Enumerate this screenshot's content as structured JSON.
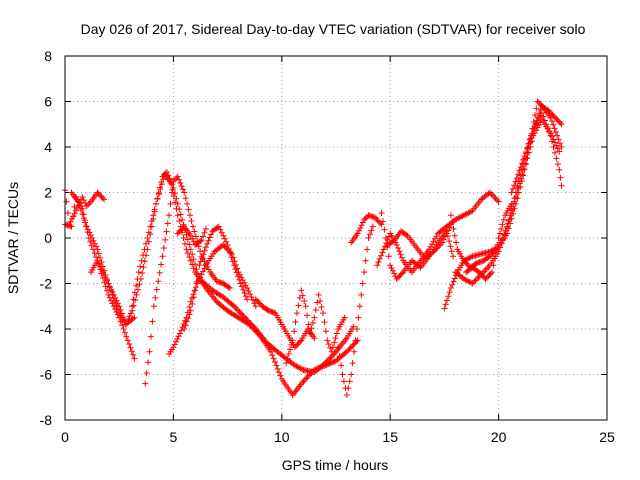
{
  "chart_data": {
    "type": "scatter",
    "title": "Day 026 of 2017, Sidereal Day-to-day VTEC variation (SDTVAR) for receiver solo",
    "xlabel": "GPS time / hours",
    "ylabel": "SDTVAR / TECUs",
    "xlim": [
      0,
      25
    ],
    "ylim": [
      -8,
      8
    ],
    "x_ticks": [
      0,
      5,
      10,
      15,
      20,
      25
    ],
    "y_ticks": [
      -8,
      -6,
      -4,
      -2,
      0,
      2,
      4,
      6,
      8
    ],
    "grid": true,
    "marker": "+",
    "series_color": "#ff0000",
    "series": [
      {
        "x": [
          0.0,
          0.2,
          0.5,
          0.8,
          1.0,
          1.2,
          1.5,
          1.8
        ],
        "y": [
          2.1,
          0.6,
          1.2,
          1.8,
          1.4,
          1.6,
          2.0,
          1.7
        ]
      },
      {
        "x": [
          0.0,
          0.3,
          0.5,
          0.8,
          1.1,
          1.5,
          2.0,
          2.5,
          2.9,
          3.2
        ],
        "y": [
          0.6,
          0.5,
          1.8,
          1.3,
          0.0,
          -1.0,
          -2.5,
          -3.5,
          -4.5,
          -5.3
        ]
      },
      {
        "x": [
          0.3,
          0.6,
          1.0,
          1.5,
          2.0,
          2.5,
          2.8,
          3.2
        ],
        "y": [
          2.0,
          1.6,
          0.5,
          -0.5,
          -2.0,
          -3.3,
          -3.8,
          -3.5
        ]
      },
      {
        "x": [
          1.2,
          1.5,
          2.0,
          2.5,
          2.8,
          3.1,
          3.5,
          3.8,
          4.2,
          4.6,
          4.9,
          5.2,
          5.6,
          6.0,
          6.5,
          7.0,
          7.5,
          8.0,
          8.5,
          9.0,
          9.5,
          10.0,
          10.5,
          11.0,
          11.5,
          12.0,
          12.5,
          13.0,
          13.5
        ],
        "y": [
          -1.5,
          -1.0,
          -2.0,
          -3.0,
          -3.8,
          -3.2,
          -1.8,
          -0.5,
          1.5,
          2.8,
          2.4,
          1.0,
          -0.5,
          -1.5,
          -2.2,
          -2.8,
          -3.2,
          -3.5,
          -3.8,
          -4.3,
          -5.0,
          -6.2,
          -6.9,
          -6.3,
          -5.8,
          -5.6,
          -5.4,
          -5.0,
          -4.5
        ]
      },
      {
        "x": [
          3.1,
          3.4,
          3.8,
          4.2,
          4.5,
          4.7,
          5.0,
          5.4,
          5.8,
          6.2,
          6.8,
          7.3,
          7.8,
          8.3,
          8.8,
          9.3,
          9.8,
          10.2,
          10.6,
          11.0,
          11.5,
          12.0,
          12.5,
          13.0,
          13.3
        ],
        "y": [
          -3.0,
          -1.5,
          0.0,
          1.5,
          2.7,
          2.9,
          2.2,
          0.8,
          -0.5,
          -1.8,
          -2.3,
          -2.6,
          -3.0,
          -3.5,
          -4.0,
          -4.6,
          -5.0,
          -5.3,
          -5.6,
          -5.8,
          -5.9,
          -5.5,
          -5.0,
          -4.4,
          -3.9
        ]
      },
      {
        "x": [
          3.7,
          3.9,
          4.1,
          4.5,
          4.8,
          5.0,
          5.2,
          5.5,
          5.9,
          6.3,
          6.7,
          7.0,
          7.3,
          7.6
        ],
        "y": [
          -6.4,
          -5.0,
          -3.0,
          -0.8,
          1.0,
          2.5,
          2.7,
          2.0,
          0.5,
          -0.8,
          -1.5,
          -1.9,
          -2.0,
          -2.2
        ]
      },
      {
        "x": [
          4.8,
          5.0,
          5.3,
          5.6,
          5.8,
          6.1,
          6.5,
          6.9,
          7.3,
          7.7,
          8.0,
          8.4,
          8.8
        ],
        "y": [
          -5.1,
          -4.8,
          -4.2,
          -3.5,
          -2.8,
          -2.0,
          -1.2,
          -0.6,
          -0.3,
          -0.7,
          -1.5,
          -2.2,
          -3.0
        ]
      },
      {
        "x": [
          5.5,
          5.8,
          6.0,
          6.2,
          6.5,
          6.8,
          7.1,
          7.5,
          7.8,
          8.1,
          8.4
        ],
        "y": [
          -4.0,
          -3.2,
          -2.3,
          -1.2,
          -0.4,
          0.3,
          0.5,
          -0.3,
          -1.2,
          -2.0,
          -2.7
        ]
      },
      {
        "x": [
          5.2,
          5.5,
          5.8,
          6.0,
          6.3,
          6.5
        ],
        "y": [
          0.2,
          0.5,
          0.1,
          -0.3,
          -0.1,
          0.4
        ]
      },
      {
        "x": [
          8.8,
          9.1,
          9.4,
          9.7,
          10.0,
          10.3,
          10.6,
          10.9,
          11.2,
          11.5
        ],
        "y": [
          -2.7,
          -3.0,
          -3.2,
          -3.3,
          -3.8,
          -4.3,
          -4.8,
          -4.5,
          -4.0,
          -4.4
        ]
      },
      {
        "x": [
          10.2,
          10.5,
          10.7,
          10.9,
          11.1,
          11.3,
          11.5,
          11.7,
          11.9,
          12.1,
          12.3,
          12.6,
          12.9
        ],
        "y": [
          -5.5,
          -4.5,
          -3.3,
          -2.3,
          -3.0,
          -4.2,
          -3.5,
          -2.5,
          -3.3,
          -4.5,
          -5.0,
          -4.0,
          -3.5
        ]
      },
      {
        "x": [
          12.6,
          12.8,
          13.0,
          13.2,
          13.4,
          13.6,
          13.8,
          14.0,
          14.2
        ],
        "y": [
          -4.8,
          -6.0,
          -6.9,
          -6.0,
          -4.5,
          -3.0,
          -1.5,
          0.0,
          0.5
        ]
      },
      {
        "x": [
          13.2,
          13.5,
          13.8,
          14.0,
          14.3,
          14.6
        ],
        "y": [
          -0.2,
          0.2,
          0.8,
          1.0,
          0.9,
          0.6
        ]
      },
      {
        "x": [
          14.4,
          14.7,
          15.0,
          15.3,
          15.6,
          16.0,
          16.4,
          16.8,
          17.2,
          17.6,
          18.0,
          18.4,
          18.8,
          19.2,
          19.6,
          20.0
        ],
        "y": [
          -1.2,
          -0.5,
          0.2,
          -0.3,
          -1.0,
          -1.5,
          -1.0,
          -0.5,
          0.2,
          0.5,
          0.8,
          1.0,
          1.2,
          1.7,
          2.0,
          1.6
        ]
      },
      {
        "x": [
          14.6,
          14.8,
          15.0,
          15.3,
          15.6,
          16.0,
          16.4,
          16.8,
          17.2,
          17.6,
          17.9
        ],
        "y": [
          1.1,
          0.0,
          -1.2,
          -1.8,
          -1.5,
          -1.0,
          -1.3,
          -0.8,
          -0.2,
          0.3,
          -0.8
        ]
      },
      {
        "x": [
          14.9,
          15.2,
          15.5,
          15.8,
          16.2,
          16.6,
          17.0,
          17.4,
          17.8
        ],
        "y": [
          -0.3,
          -0.1,
          0.3,
          0.1,
          -0.4,
          -0.9,
          -0.6,
          -0.2,
          0.6
        ]
      },
      {
        "x": [
          17.8,
          18.1,
          18.4,
          18.7,
          19.0,
          19.3,
          19.6,
          19.9,
          20.2,
          20.5,
          20.8,
          21.1,
          21.4,
          21.7,
          22.0,
          22.3,
          22.6,
          22.9
        ],
        "y": [
          1.0,
          -0.5,
          -1.0,
          -1.3,
          -1.1,
          -1.0,
          -0.8,
          -0.5,
          0.0,
          0.8,
          1.8,
          2.8,
          4.0,
          5.0,
          5.8,
          5.6,
          5.3,
          5.0
        ]
      },
      {
        "x": [
          17.5,
          17.8,
          18.1,
          18.4,
          18.8,
          19.2,
          19.6,
          20.0,
          20.4,
          20.8,
          21.2,
          21.6,
          22.0,
          22.4,
          22.8
        ],
        "y": [
          -3.1,
          -2.2,
          -1.5,
          -1.0,
          -0.8,
          -0.7,
          -0.6,
          -0.4,
          0.2,
          1.5,
          3.0,
          4.5,
          5.2,
          4.6,
          3.8
        ]
      },
      {
        "x": [
          18.0,
          18.4,
          18.8,
          19.2,
          19.6,
          20.0,
          20.4,
          20.8,
          21.2,
          21.6,
          22.0,
          22.4,
          22.8,
          22.9
        ],
        "y": [
          -1.5,
          -1.8,
          -2.0,
          -1.6,
          -1.2,
          -0.6,
          0.5,
          2.0,
          3.5,
          4.8,
          5.5,
          4.5,
          3.0,
          2.3
        ]
      },
      {
        "x": [
          18.5,
          18.8,
          19.1,
          19.4,
          19.7,
          20.0,
          20.3,
          20.6
        ],
        "y": [
          -1.5,
          -1.3,
          -1.5,
          -1.8,
          -1.5,
          0.0,
          1.0,
          1.5
        ]
      },
      {
        "x": [
          20.6,
          20.9,
          21.2,
          21.5,
          21.8,
          22.1,
          22.4,
          22.7,
          22.9
        ],
        "y": [
          2.0,
          2.8,
          3.6,
          4.5,
          6.0,
          5.7,
          5.3,
          4.5,
          4.0
        ]
      }
    ]
  }
}
